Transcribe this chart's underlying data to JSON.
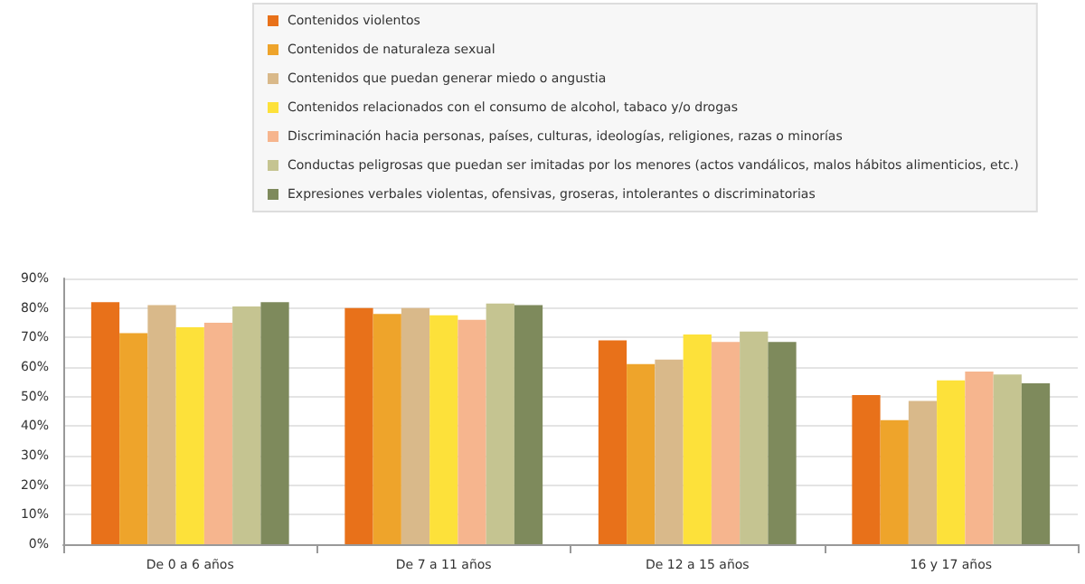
{
  "chart_data": {
    "type": "bar",
    "categories": [
      "De 0 a 6 años",
      "De 7 a 11 años",
      "De 12 a 15 años",
      "16 y 17 años"
    ],
    "series": [
      {
        "name": "Contenidos violentos",
        "color": "#e8711a",
        "values": [
          82,
          80,
          69,
          50.5
        ]
      },
      {
        "name": "Contenidos de naturaleza sexual",
        "color": "#eea42b",
        "values": [
          71.5,
          78,
          61,
          42
        ]
      },
      {
        "name": "Contenidos que puedan generar miedo o angustia",
        "color": "#d9b98a",
        "values": [
          81,
          80,
          62.5,
          48.5
        ]
      },
      {
        "name": "Contenidos relacionados con el consumo de alcohol, tabaco y/o drogas",
        "color": "#fde13a",
        "values": [
          73.5,
          77.5,
          71,
          55.5
        ]
      },
      {
        "name": "Discriminación hacia personas, países, culturas, ideologías, religiones, razas o minorías",
        "color": "#f6b58e",
        "values": [
          75,
          76,
          68.5,
          58.5
        ]
      },
      {
        "name": "Conductas peligrosas que puedan ser imitadas por los menores (actos vandálicos, malos hábitos alimenticios, etc.)",
        "color": "#c5c491",
        "values": [
          80.5,
          81.5,
          72,
          57.5
        ]
      },
      {
        "name": "Expresiones verbales violentas, ofensivas, groseras, intolerantes o discriminatorias",
        "color": "#7e8a5c",
        "values": [
          82,
          81,
          68.5,
          54.5
        ]
      }
    ],
    "ylim": [
      0,
      90
    ],
    "yticks": [
      {
        "value": 0,
        "label": "0%"
      },
      {
        "value": 10,
        "label": "10%"
      },
      {
        "value": 20,
        "label": "20%"
      },
      {
        "value": 30,
        "label": "30%"
      },
      {
        "value": 40,
        "label": "40%"
      },
      {
        "value": 50,
        "label": "50%"
      },
      {
        "value": 60,
        "label": "60%"
      },
      {
        "value": 70,
        "label": "70%"
      },
      {
        "value": 80,
        "label": "80%"
      },
      {
        "value": 90,
        "label": "90%"
      }
    ],
    "grid": "y",
    "legend": "top"
  }
}
